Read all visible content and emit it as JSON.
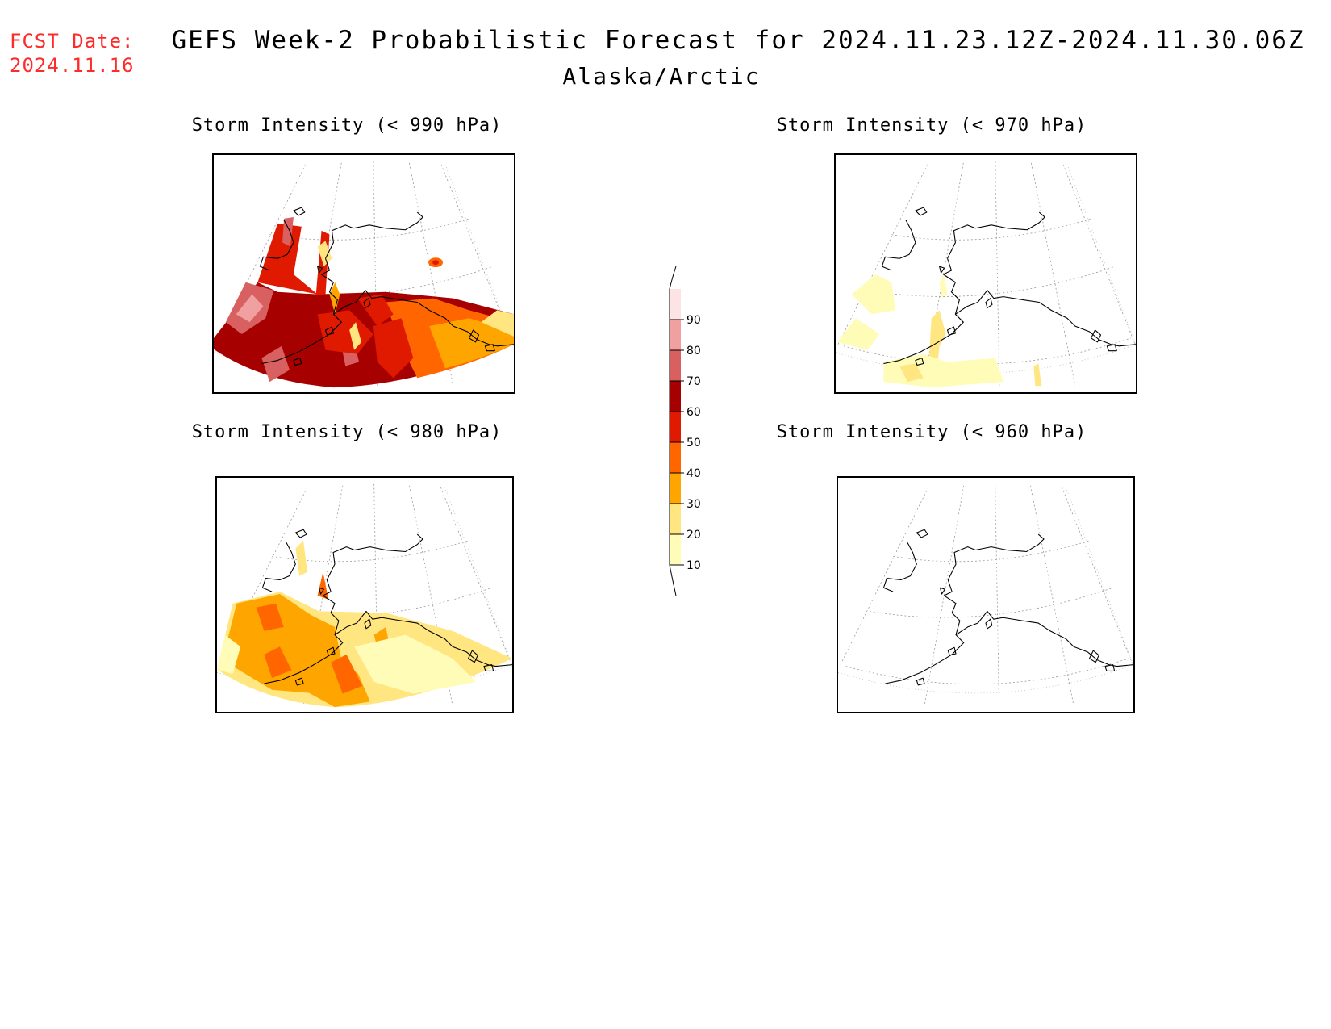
{
  "header": {
    "fcst_label": "FCST Date:",
    "fcst_date": "2024.11.16",
    "title": "GEFS Week-2 Probabilistic Forecast for 2024.11.23.12Z-2024.11.30.06Z",
    "subtitle": "Alaska/Arctic"
  },
  "panels": [
    {
      "id": "p990",
      "title": "Storm Intensity (< 990 hPa)",
      "shading": "high"
    },
    {
      "id": "p970",
      "title": "Storm Intensity (< 970 hPa)",
      "shading": "low"
    },
    {
      "id": "p980",
      "title": "Storm Intensity (< 980 hPa)",
      "shading": "medium"
    },
    {
      "id": "p960",
      "title": "Storm Intensity (< 960 hPa)",
      "shading": "none"
    }
  ],
  "legend": {
    "levels": [
      "10",
      "20",
      "30",
      "40",
      "50",
      "60",
      "70",
      "80",
      "90"
    ],
    "colors": [
      "#fffcb8",
      "#ffe680",
      "#ffa500",
      "#ff6600",
      "#e01a00",
      "#a60000",
      "#d86060",
      "#f0a0a0",
      "#fde3e3"
    ]
  }
}
